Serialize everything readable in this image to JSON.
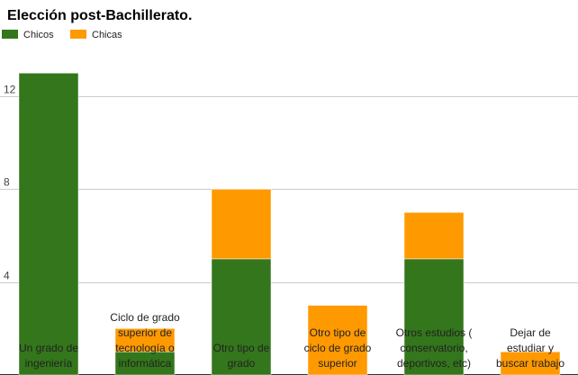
{
  "chart_data": {
    "type": "bar",
    "stacked": true,
    "title": "Elección post-Bachillerato.",
    "xlabel": "",
    "ylabel": "",
    "categories": [
      "Un grado de ingeniería",
      "Ciclo de grado superior de tecnología o informática",
      "Otro tipo de grado",
      "Otro tipo de ciclo de grado superior",
      "Otros estudios ( conservatorio, deportivos, etc)",
      "Dejar de estudiar y buscar trabajo"
    ],
    "series": [
      {
        "name": "Chicos",
        "color": "#33761b",
        "values": [
          13,
          1,
          5,
          0,
          5,
          0
        ]
      },
      {
        "name": "Chicas",
        "color": "#ff9900",
        "values": [
          0,
          1,
          3,
          3,
          2,
          1
        ]
      }
    ],
    "y_ticks": [
      "4",
      "8",
      "12"
    ],
    "ylim": [
      0,
      14.6
    ],
    "grid": true,
    "legend_position": "top-left",
    "colors": {
      "grid": "#cccccc",
      "axis_text": "#444444"
    }
  }
}
